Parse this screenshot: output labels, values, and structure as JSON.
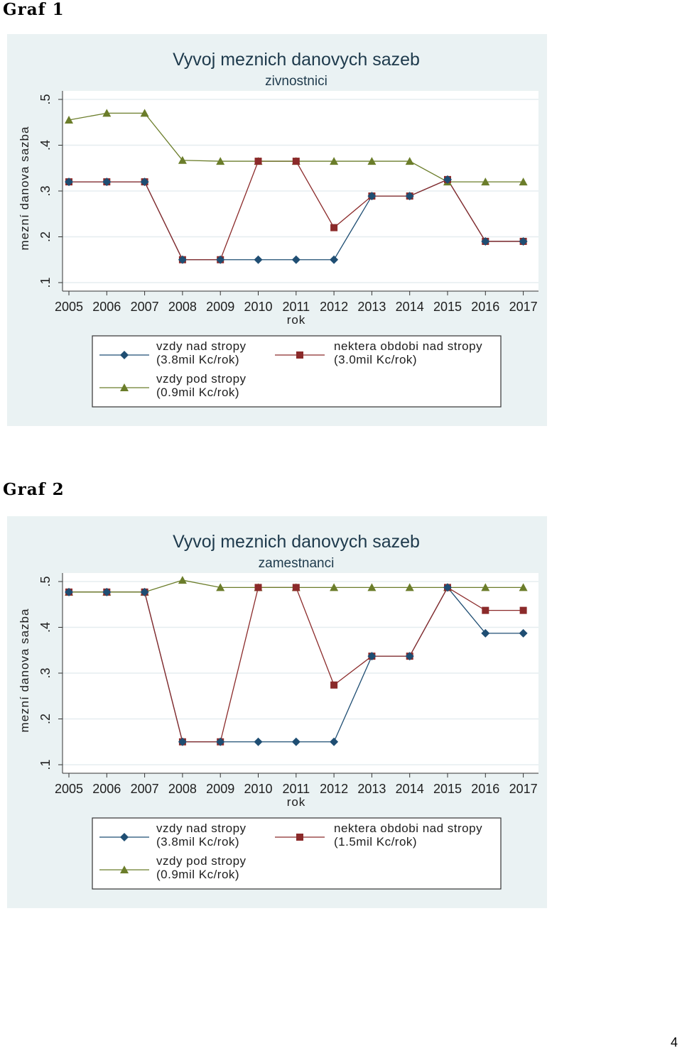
{
  "headings": {
    "graf1": "Graf 1",
    "graf2": "Graf 2"
  },
  "page_number": "4",
  "colors": {
    "panel_bg": "#eaf2f3",
    "plot_bg": "#ffffff",
    "grid": "#e6edf0",
    "series_blue": "#1f4e73",
    "series_red": "#8b2a2a",
    "series_green": "#6b7d2a"
  },
  "chart_data": [
    {
      "type": "line",
      "title": "Vyvoj meznich danovych sazeb",
      "subtitle": "zivnostnici",
      "xlabel": "rok",
      "ylabel": "mezní danova sazba",
      "x": [
        "2005",
        "2006",
        "2007",
        "2008",
        "2009",
        "2010",
        "2011",
        "2012",
        "2013",
        "2014",
        "2015",
        "2016",
        "2017"
      ],
      "yticks": [
        ".1",
        ".2",
        ".3",
        ".4",
        ".5"
      ],
      "ylim": [
        0.1,
        0.52
      ],
      "grid": true,
      "legend_position": "bottom",
      "series": [
        {
          "name": "vzdy nad stropy",
          "name2": "(3.8mil Kc/rok)",
          "marker": "diamond",
          "color": "#1f4e73",
          "values": [
            0.32,
            0.32,
            0.32,
            0.15,
            0.15,
            0.15,
            0.15,
            0.15,
            0.289,
            0.289,
            0.325,
            0.19,
            0.19
          ]
        },
        {
          "name": "nektera obdobi nad stropy",
          "name2": "(3.0mil Kc/rok)",
          "marker": "square",
          "color": "#8b2a2a",
          "values": [
            0.32,
            0.32,
            0.32,
            0.15,
            0.15,
            0.365,
            0.365,
            0.22,
            0.289,
            0.289,
            0.325,
            0.19,
            0.19
          ]
        },
        {
          "name": "vzdy pod stropy",
          "name2": "(0.9mil Kc/rok)",
          "marker": "triangle",
          "color": "#6b7d2a",
          "values": [
            0.455,
            0.47,
            0.47,
            0.367,
            0.365,
            0.365,
            0.365,
            0.365,
            0.365,
            0.365,
            0.32,
            0.32,
            0.32
          ]
        }
      ]
    },
    {
      "type": "line",
      "title": "Vyvoj meznich danovych sazeb",
      "subtitle": "zamestnanci",
      "xlabel": "rok",
      "ylabel": "mezní danova sazba",
      "x": [
        "2005",
        "2006",
        "2007",
        "2008",
        "2009",
        "2010",
        "2011",
        "2012",
        "2013",
        "2014",
        "2015",
        "2016",
        "2017"
      ],
      "yticks": [
        ".1",
        ".2",
        ".3",
        ".4",
        ".5"
      ],
      "ylim": [
        0.1,
        0.52
      ],
      "grid": true,
      "legend_position": "bottom",
      "series": [
        {
          "name": "vzdy nad stropy",
          "name2": "(3.8mil Kc/rok)",
          "marker": "diamond",
          "color": "#1f4e73",
          "values": [
            0.477,
            0.477,
            0.477,
            0.15,
            0.15,
            0.15,
            0.15,
            0.15,
            0.337,
            0.337,
            0.487,
            0.387,
            0.387
          ]
        },
        {
          "name": "nektera obdobi nad stropy",
          "name2": "(1.5mil Kc/rok)",
          "marker": "square",
          "color": "#8b2a2a",
          "values": [
            0.477,
            0.477,
            0.477,
            0.15,
            0.15,
            0.487,
            0.487,
            0.274,
            0.337,
            0.337,
            0.487,
            0.437,
            0.437
          ]
        },
        {
          "name": "vzdy pod stropy",
          "name2": "(0.9mil Kc/rok)",
          "marker": "triangle",
          "color": "#6b7d2a",
          "values": [
            0.477,
            0.477,
            0.477,
            0.503,
            0.487,
            0.487,
            0.487,
            0.487,
            0.487,
            0.487,
            0.487,
            0.487,
            0.487
          ]
        }
      ]
    }
  ]
}
